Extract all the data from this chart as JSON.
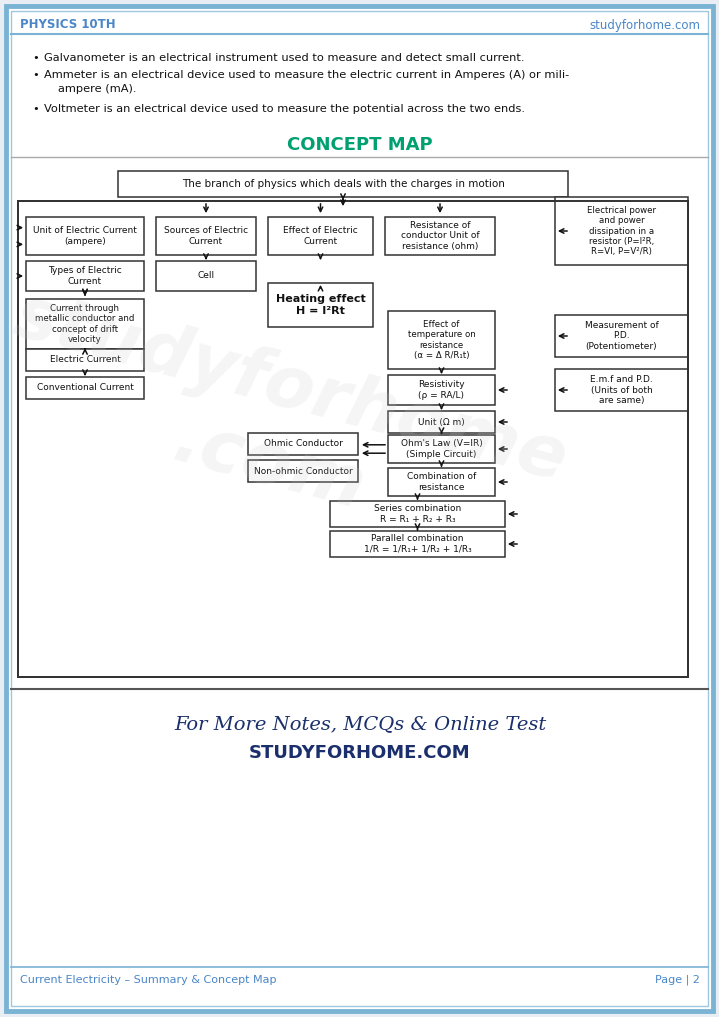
{
  "page_bg": "#e8eef4",
  "content_bg": "#ffffff",
  "border_color_outer": "#7ab3d4",
  "border_color_inner": "#9ec8e0",
  "header_text_left": "PHYSICS 10TH",
  "header_text_right": "studyforhome.com",
  "header_color": "#4a86c8",
  "bullet1": "Galvanometer is an electrical instrument used to measure and detect small current.",
  "bullet2a": "Ammeter is an electrical device used to measure the electric current in Amperes (A) or mili-",
  "bullet2b": "ampere (mA).",
  "bullet3": "Voltmeter is an electrical device used to measure the potential across the two ends.",
  "concept_map_title": "CONCEPT MAP",
  "concept_map_title_color": "#00a070",
  "footer_left": "Current Electricity – Summary & Concept Map",
  "footer_right": "Page | 2",
  "footer_color": "#4a86c8",
  "promo_line1": "For More Notes, MCQs & Online Test",
  "promo_line2": "STUDYFORHOME.COM",
  "promo_color": "#1a2f6b",
  "box_edge": "#222222",
  "arrow_color": "#111111",
  "watermark_text": "studyforhome\n.com"
}
